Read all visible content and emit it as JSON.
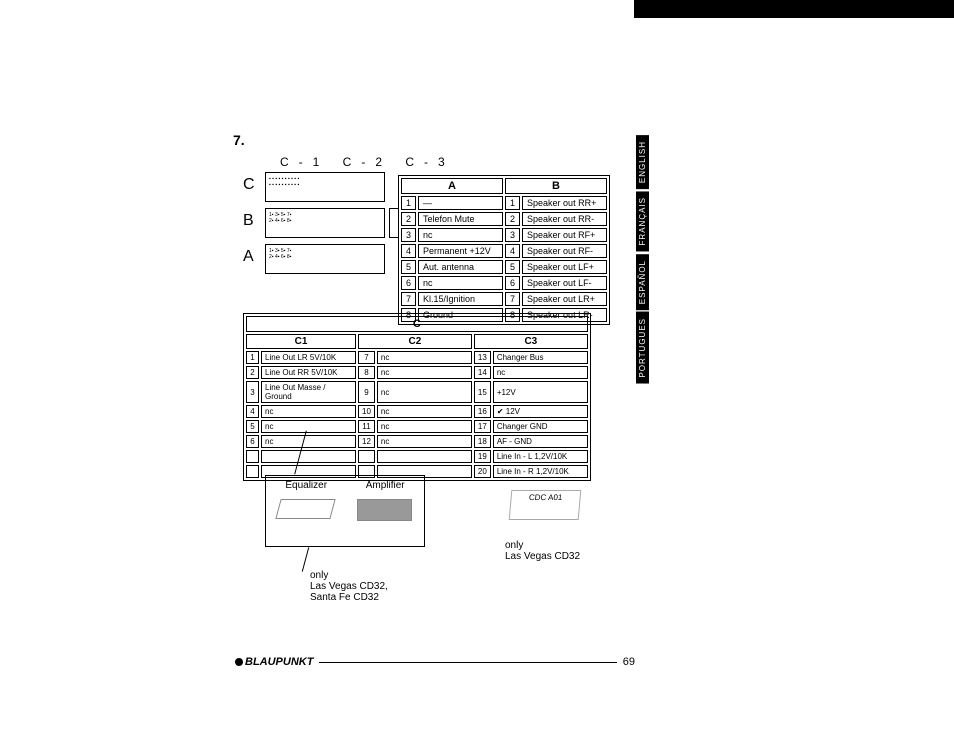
{
  "section_number": "7.",
  "connector_header": "C-1   C-2   C-3",
  "side_labels": {
    "c": "C",
    "b": "B",
    "a": "A"
  },
  "lang_tabs": [
    "ENGLISH",
    "FRANÇAIS",
    "ESPAÑOL",
    "PORTUGUES"
  ],
  "table_ab": {
    "header_a": "A",
    "header_b": "B",
    "rows": [
      {
        "na": "1",
        "da": "—",
        "nb": "1",
        "db": "Speaker out RR+"
      },
      {
        "na": "2",
        "da": "Telefon Mute",
        "nb": "2",
        "db": "Speaker out RR-"
      },
      {
        "na": "3",
        "da": "nc",
        "nb": "3",
        "db": "Speaker out RF+"
      },
      {
        "na": "4",
        "da": "Permanent +12V",
        "nb": "4",
        "db": "Speaker out RF-"
      },
      {
        "na": "5",
        "da": "Aut. antenna",
        "nb": "5",
        "db": "Speaker out LF+"
      },
      {
        "na": "6",
        "da": "nc",
        "nb": "6",
        "db": "Speaker out LF-"
      },
      {
        "na": "7",
        "da": "Kl.15/Ignition",
        "nb": "7",
        "db": "Speaker out LR+"
      },
      {
        "na": "8",
        "da": "Ground",
        "nb": "8",
        "db": "Speaker out LR-"
      }
    ]
  },
  "table_c": {
    "header": "C",
    "sub": {
      "c1": "C1",
      "c2": "C2",
      "c3": "C3"
    },
    "c1": [
      {
        "n": "1",
        "d": "Line Out LR 5V/10K"
      },
      {
        "n": "2",
        "d": "Line Out RR 5V/10K"
      },
      {
        "n": "3",
        "d": "Line Out Masse / Ground"
      },
      {
        "n": "4",
        "d": "nc"
      },
      {
        "n": "5",
        "d": "nc"
      },
      {
        "n": "6",
        "d": "nc"
      }
    ],
    "c2": [
      {
        "n": "7",
        "d": "nc"
      },
      {
        "n": "8",
        "d": "nc"
      },
      {
        "n": "9",
        "d": "nc"
      },
      {
        "n": "10",
        "d": "nc"
      },
      {
        "n": "11",
        "d": "nc"
      },
      {
        "n": "12",
        "d": "nc"
      }
    ],
    "c3": [
      {
        "n": "13",
        "d": "Changer Bus"
      },
      {
        "n": "14",
        "d": "nc"
      },
      {
        "n": "15",
        "d": "+12V"
      },
      {
        "n": "16",
        "d": "✔ 12V"
      },
      {
        "n": "17",
        "d": "Changer GND"
      },
      {
        "n": "18",
        "d": "AF - GND"
      },
      {
        "n": "19",
        "d": "Line In - L  1,2V/10K"
      },
      {
        "n": "20",
        "d": "Line In - R  1,2V/10K"
      }
    ]
  },
  "eqamp": {
    "eq": "Equalizer",
    "amp": "Amplifier"
  },
  "cdc_label": "CDC A01",
  "note1_l1": "only",
  "note1_l2": "Las Vegas CD32,",
  "note1_l3": "Santa Fe CD32",
  "note2_l1": "only",
  "note2_l2": "Las Vegas CD32",
  "footer": {
    "brand": "BLAUPUNKT",
    "page": "69"
  },
  "colors": {
    "text": "#000000",
    "bg": "#ffffff",
    "tab_bg": "#000000",
    "tab_fg": "#ffffff"
  }
}
